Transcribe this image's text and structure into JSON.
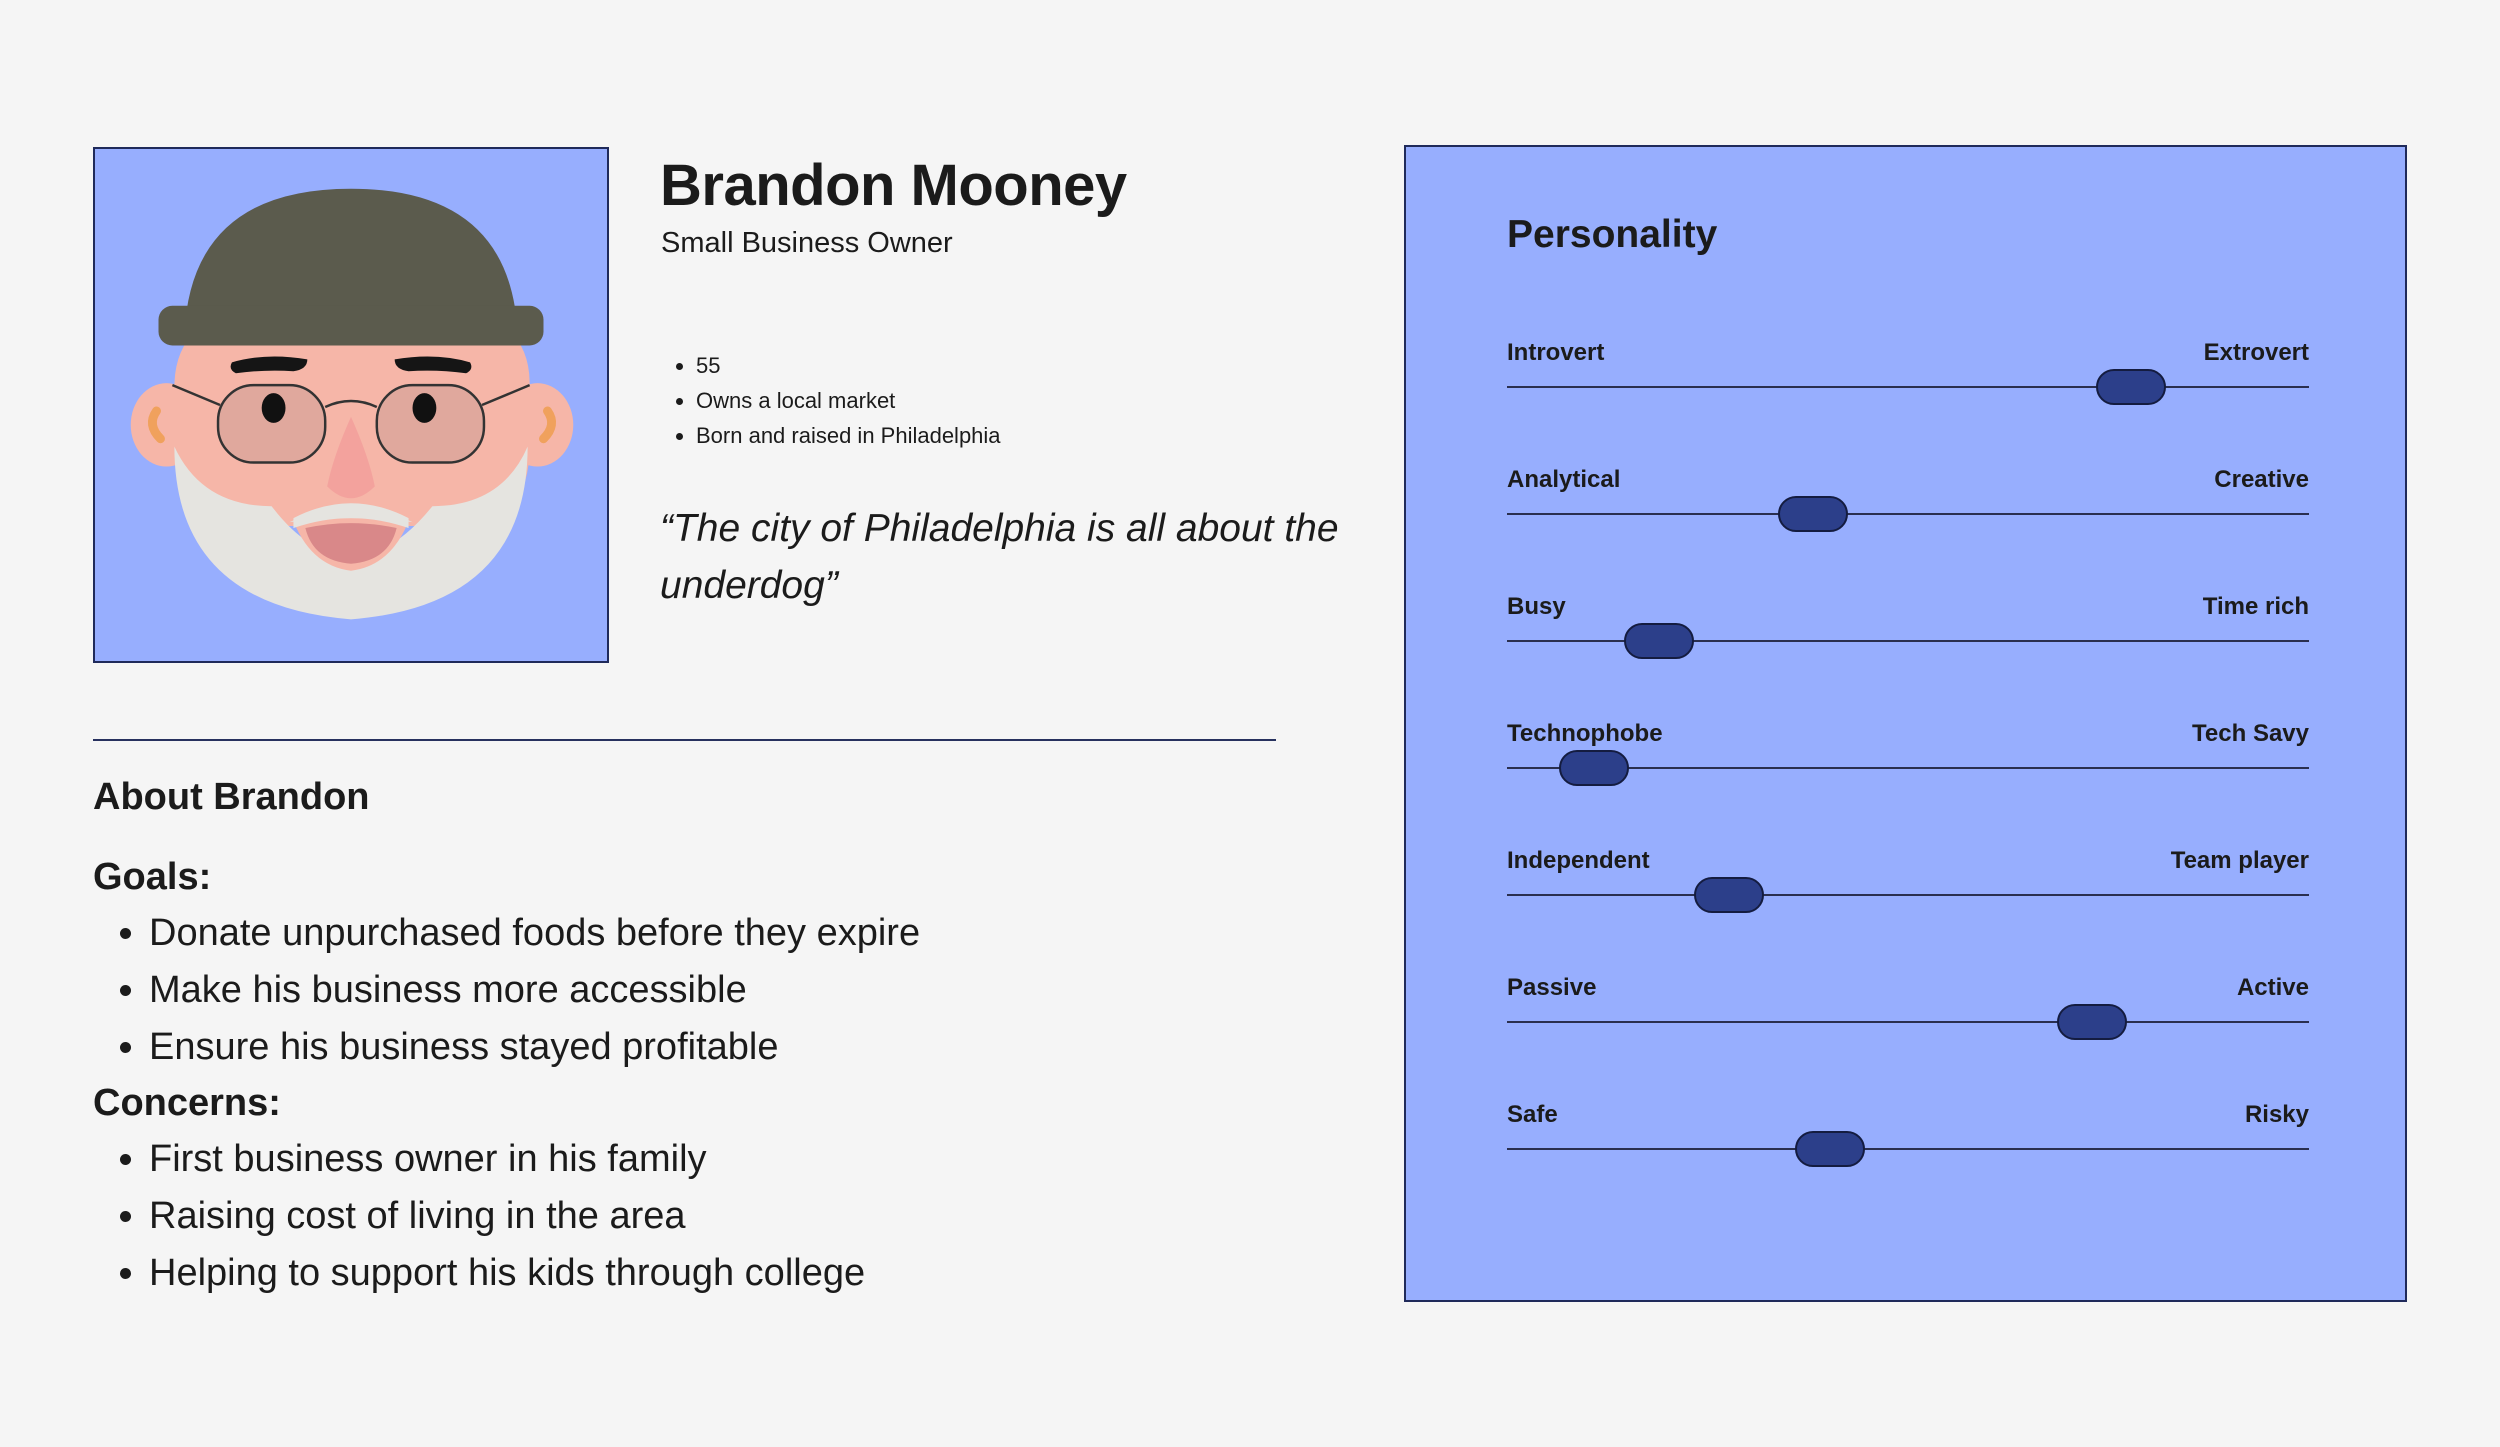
{
  "persona": {
    "name": "Brandon Mooney",
    "role": "Small Business Owner",
    "facts": [
      "55",
      "Owns a local market",
      "Born and raised in Philadelphia"
    ],
    "quote": "“The city of Philadelphia is all about the underdog”"
  },
  "about": {
    "title": "About Brandon",
    "goals_heading": "Goals:",
    "goals": [
      "Donate unpurchased foods before they expire",
      "Make his business more accessible",
      "Ensure his business stayed profitable"
    ],
    "concerns_heading": "Concerns:",
    "concerns": [
      "First business owner in his family",
      "Raising cost of living in the area",
      "Helping to support his kids through college"
    ]
  },
  "personality": {
    "title": "Personality",
    "traits": [
      {
        "left": "Introvert",
        "right": "Extrovert",
        "value": 0.778
      },
      {
        "left": "Analytical",
        "right": "Creative",
        "value": 0.381
      },
      {
        "left": "Busy",
        "right": "Time rich",
        "value": 0.189
      },
      {
        "left": "Technophobe",
        "right": "Tech Savy",
        "value": 0.108
      },
      {
        "left": "Independent",
        "right": "Team player",
        "value": 0.277
      },
      {
        "left": "Passive",
        "right": "Active",
        "value": 0.729
      },
      {
        "left": "Safe",
        "right": "Risky",
        "value": 0.403
      }
    ]
  },
  "colors": {
    "background": "#f5f5f5",
    "card_blue": "#97aefe",
    "knob": "#2c3f8a",
    "border": "#1f2a5a"
  },
  "icons": {
    "avatar": "bearded-man-beanie-glasses-illustration"
  }
}
